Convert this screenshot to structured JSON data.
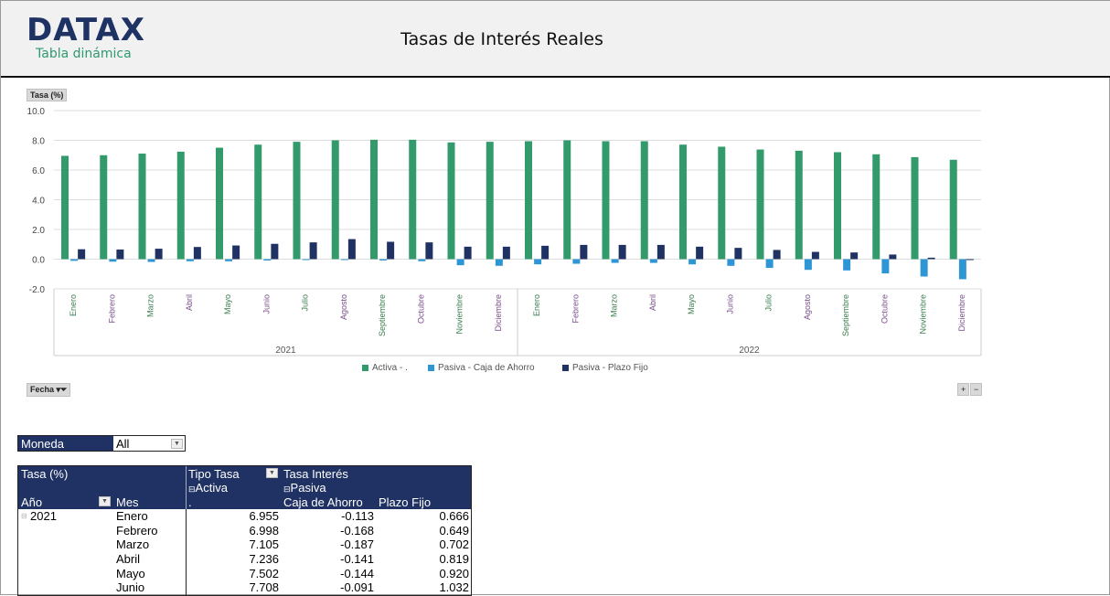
{
  "header": {
    "logo": "DATAX",
    "logo_subtitle": "Tabla dinámica",
    "title": "Tasas de Interés Reales"
  },
  "chart_buttons": {
    "value_field": "Tasa (%)",
    "filter_field": "Fecha",
    "expand": "+",
    "collapse": "−"
  },
  "chart_data": {
    "type": "bar",
    "ylim": [
      -2,
      10
    ],
    "yticks": [
      "10.0",
      "8.0",
      "6.0",
      "4.0",
      "2.0",
      "0.0",
      "-2.0"
    ],
    "ytick_values": [
      10,
      8,
      6,
      4,
      2,
      0,
      -2
    ],
    "grid": true,
    "legend_position": "bottom",
    "groups": [
      {
        "label": "2021",
        "months": [
          "Enero",
          "Febrero",
          "Marzo",
          "Abril",
          "Mayo",
          "Junio",
          "Julio",
          "Agosto",
          "Septiembre",
          "Octubre",
          "Noviembre",
          "Diciembre"
        ]
      },
      {
        "label": "2022",
        "months": [
          "Enero",
          "Febrero",
          "Marzo",
          "Abril",
          "Mayo",
          "Junio",
          "Julio",
          "Agosto",
          "Septiembre",
          "Octubre",
          "Noviembre",
          "Diciembre"
        ]
      }
    ],
    "series": [
      {
        "name": "Activa - .",
        "color": "#339a6c",
        "values": [
          6.955,
          6.998,
          7.105,
          7.236,
          7.502,
          7.708,
          7.9,
          8.0,
          8.04,
          8.04,
          7.86,
          7.9,
          7.94,
          8.0,
          7.94,
          7.94,
          7.71,
          7.57,
          7.38,
          7.3,
          7.2,
          7.06,
          6.87,
          6.69
        ]
      },
      {
        "name": "Pasiva - Caja de Ahorro",
        "color": "#2f96d6",
        "values": [
          -0.113,
          -0.168,
          -0.187,
          -0.141,
          -0.144,
          -0.091,
          -0.03,
          -0.01,
          -0.09,
          -0.14,
          -0.41,
          -0.45,
          -0.35,
          -0.31,
          -0.25,
          -0.25,
          -0.35,
          -0.45,
          -0.59,
          -0.72,
          -0.76,
          -0.96,
          -1.17,
          -1.35
        ]
      },
      {
        "name": "Pasiva - Plazo Fijo",
        "color": "#203263",
        "values": [
          0.666,
          0.649,
          0.702,
          0.819,
          0.92,
          1.032,
          1.13,
          1.35,
          1.17,
          1.13,
          0.84,
          0.84,
          0.9,
          0.96,
          0.96,
          0.96,
          0.84,
          0.76,
          0.62,
          0.49,
          0.45,
          0.31,
          0.1,
          -0.04
        ]
      }
    ]
  },
  "filter": {
    "label": "Moneda",
    "value": "All"
  },
  "pivot": {
    "corner": "Tasa (%)",
    "col_field": "Tipo Tasa",
    "col_field2": "Tasa Interés",
    "activa": "Activa",
    "pasiva": "Pasiva",
    "activa_sub": ".",
    "caja": "Caja de Ahorro",
    "plazo": "Plazo Fijo",
    "row_field1": "Año",
    "row_field2": "Mes",
    "rows": [
      {
        "year": "2021",
        "mes": "Enero",
        "activa": "6.955",
        "caja": "-0.113",
        "plazo": "0.666"
      },
      {
        "year": "",
        "mes": "Febrero",
        "activa": "6.998",
        "caja": "-0.168",
        "plazo": "0.649"
      },
      {
        "year": "",
        "mes": "Marzo",
        "activa": "7.105",
        "caja": "-0.187",
        "plazo": "0.702"
      },
      {
        "year": "",
        "mes": "Abril",
        "activa": "7.236",
        "caja": "-0.141",
        "plazo": "0.819"
      },
      {
        "year": "",
        "mes": "Mayo",
        "activa": "7.502",
        "caja": "-0.144",
        "plazo": "0.920"
      },
      {
        "year": "",
        "mes": "Junio",
        "activa": "7.708",
        "caja": "-0.091",
        "plazo": "1.032"
      }
    ]
  }
}
